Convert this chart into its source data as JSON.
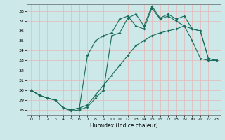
{
  "xlabel": "Humidex (Indice chaleur)",
  "bg_color": "#cce8e8",
  "line_color": "#1a6b5a",
  "grid_color": "#e8b8b8",
  "xlim": [
    -0.5,
    23.5
  ],
  "ylim": [
    27.5,
    38.7
  ],
  "xticks": [
    0,
    1,
    2,
    3,
    4,
    5,
    6,
    7,
    8,
    9,
    10,
    11,
    12,
    13,
    14,
    15,
    16,
    17,
    18,
    19,
    20,
    21,
    22,
    23
  ],
  "yticks": [
    28,
    29,
    30,
    31,
    32,
    33,
    34,
    35,
    36,
    37,
    38
  ],
  "line1_x": [
    0,
    1,
    2,
    3,
    4,
    5,
    6,
    7,
    8,
    9,
    10,
    11,
    12,
    13,
    14,
    15,
    16,
    17,
    18,
    19,
    20,
    21,
    22,
    23
  ],
  "line1_y": [
    30.0,
    29.5,
    29.2,
    29.0,
    28.2,
    28.0,
    28.2,
    28.5,
    29.5,
    30.5,
    31.5,
    32.5,
    33.5,
    34.5,
    35.0,
    35.5,
    35.8,
    36.0,
    36.2,
    36.5,
    35.0,
    33.2,
    33.0,
    33.0
  ],
  "line2_x": [
    0,
    1,
    2,
    3,
    4,
    5,
    6,
    7,
    8,
    9,
    10,
    11,
    12,
    13,
    14,
    15,
    16,
    17,
    18,
    19,
    20,
    21,
    22,
    23
  ],
  "line2_y": [
    30.0,
    29.5,
    29.2,
    29.0,
    28.2,
    28.0,
    28.2,
    33.5,
    35.0,
    35.5,
    35.8,
    37.2,
    37.5,
    36.5,
    36.2,
    38.3,
    37.2,
    37.5,
    37.0,
    36.5,
    36.2,
    36.0,
    33.2,
    33.0
  ],
  "line3_x": [
    0,
    1,
    2,
    3,
    4,
    5,
    6,
    7,
    8,
    9,
    10,
    11,
    12,
    13,
    14,
    15,
    16,
    17,
    18,
    19,
    20,
    21,
    22,
    23
  ],
  "line3_y": [
    30.0,
    29.5,
    29.2,
    29.0,
    28.2,
    27.9,
    28.0,
    28.3,
    29.2,
    30.0,
    35.5,
    35.8,
    37.3,
    37.7,
    36.5,
    38.5,
    37.3,
    37.7,
    37.2,
    37.5,
    36.2,
    36.0,
    33.2,
    33.0
  ]
}
